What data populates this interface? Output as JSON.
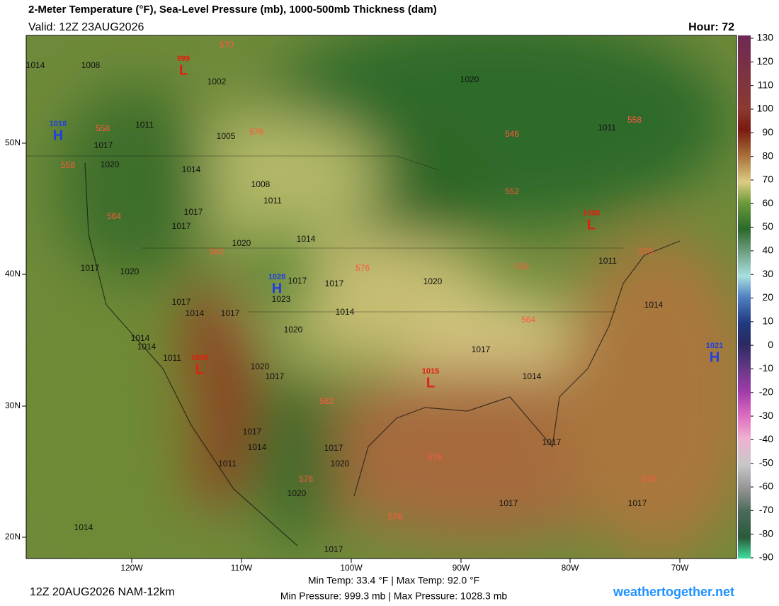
{
  "header": {
    "title": "2-Meter Temperature (°F), Sea-Level Pressure (mb), 1000-500mb Thickness (dam)",
    "valid": "Valid: 12Z 23AUG2026",
    "hour": "Hour: 72"
  },
  "map": {
    "lon_labels": [
      "120W",
      "110W",
      "100W",
      "90W",
      "80W",
      "70W"
    ],
    "lat_labels": [
      "50N",
      "40N",
      "30N",
      "20N"
    ],
    "isobar_labels": [
      1014,
      1008,
      1002,
      1020,
      1011,
      1005,
      1017,
      1020,
      1014,
      1008,
      1011,
      1017,
      1017,
      1020,
      1014,
      1017,
      1020,
      1017,
      1017,
      1023,
      1017,
      1014,
      1017,
      1014,
      1020,
      1014,
      1014,
      1011,
      1020,
      1017,
      1017,
      1014,
      1020,
      1011,
      1014,
      1011,
      1017,
      1014,
      1011,
      1017,
      1020,
      1020,
      1017,
      1017,
      1017,
      1014,
      1017
    ],
    "centers": [
      {
        "symbol": "L",
        "value": 999
      },
      {
        "symbol": "H",
        "value": 1016
      },
      {
        "symbol": "H",
        "value": 1028
      },
      {
        "symbol": "L",
        "value": 1006
      },
      {
        "symbol": "L",
        "value": 1015
      },
      {
        "symbol": "L",
        "value": 1008
      },
      {
        "symbol": "H",
        "value": 1021
      }
    ],
    "thickness_labels": [
      570,
      558,
      576,
      558,
      546,
      558,
      552,
      564,
      582,
      576,
      558,
      570,
      564,
      582,
      576,
      576,
      576,
      576
    ]
  },
  "colorbar": {
    "ticks": [
      130,
      120,
      110,
      100,
      90,
      80,
      70,
      60,
      50,
      40,
      30,
      20,
      10,
      0,
      -10,
      -20,
      -30,
      -40,
      -50,
      -60,
      -70,
      -80,
      -90
    ]
  },
  "footer": {
    "run": "12Z 20AUG2026 NAM-12km",
    "temps": "Min Temp:  33.4 °F | Max Temp:  92.0 °F",
    "pressures": "Min Pressure: 999.3 mb | Max Pressure: 1028.3 mb",
    "site": "weathertogether.net"
  }
}
